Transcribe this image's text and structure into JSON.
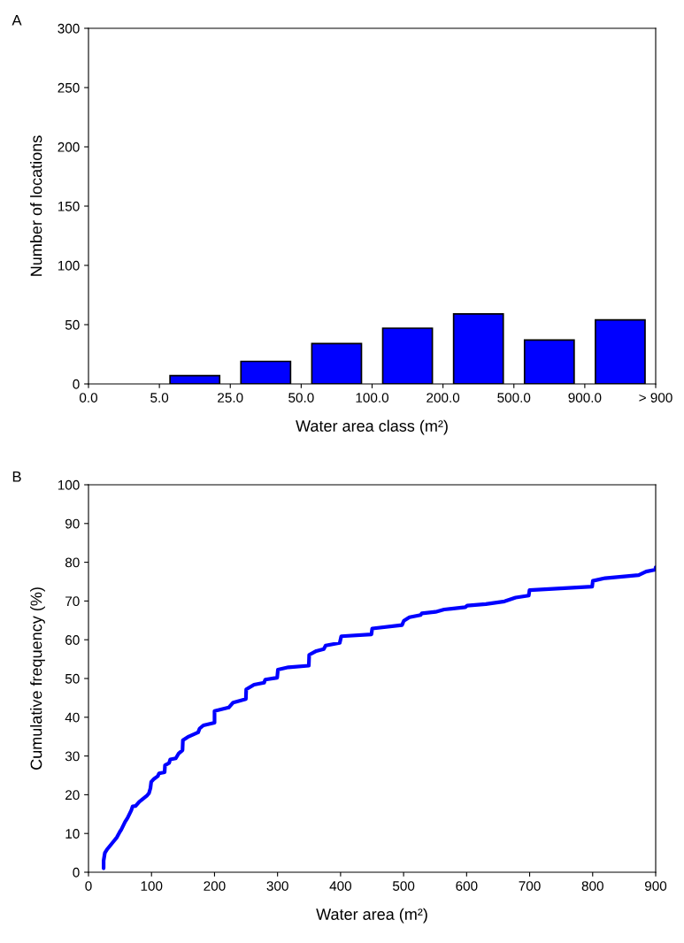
{
  "chart_data": [
    {
      "type": "bar",
      "title": "A",
      "xlabel": "Water area class (m²)",
      "ylabel": "Number of locations",
      "categories": [
        null,
        null,
        null,
        null,
        null,
        null,
        null,
        null
      ],
      "values": [
        0,
        7,
        19,
        34,
        47,
        59,
        37,
        54
      ],
      "color": "#0000ff",
      "annotations": [
        "0.0",
        "5.0",
        "25.0",
        "50.0",
        "100.0",
        "200.0",
        "500.0",
        "900.0",
        "> 900"
      ],
      "ylim": [
        0,
        300
      ],
      "yticks": [
        0,
        50,
        100,
        150,
        200,
        250,
        300
      ],
      "grid": false
    },
    {
      "type": "line",
      "title": "B",
      "xlabel": "Water area (m²)",
      "ylabel": "Cumulative frequency (%)",
      "color": "#0000ff",
      "xlim": [
        0,
        900
      ],
      "xticks": [
        0,
        100,
        200,
        300,
        400,
        500,
        600,
        700,
        800,
        900
      ],
      "ylim": [
        0,
        100
      ],
      "yticks": [
        0,
        10,
        20,
        30,
        40,
        50,
        60,
        70,
        80,
        90,
        100
      ],
      "grid": false,
      "x": [
        24,
        24,
        26,
        30,
        40,
        45,
        50,
        52,
        58,
        62,
        68,
        70,
        74.7,
        80.6,
        92.4,
        96,
        98.3,
        99.5,
        104,
        110,
        111.9,
        120.8,
        121.4,
        128,
        129.7,
        138.5,
        143.3,
        149.2,
        149.8,
        157.5,
        174,
        176.4,
        182.3,
        200,
        200,
        222.5,
        229.6,
        249.7,
        250.3,
        262.7,
        278.7,
        280.5,
        299.4,
        300.6,
        317.2,
        349.6,
        350.2,
        361.5,
        373.3,
        376.3,
        398.7,
        401.1,
        449,
        450.2,
        497.5,
        500.4,
        509.3,
        527,
        528.8,
        550.7,
        564.3,
        598,
        600.9,
        630.5,
        660.1,
        677.9,
        698.6,
        699.8,
        799.2,
        800.3,
        819.8,
        873,
        884.8,
        899.6,
        900
      ],
      "values": [
        1,
        3,
        5,
        6,
        8,
        9,
        10.5,
        11,
        13,
        14,
        16,
        17,
        17.1,
        18.2,
        19.7,
        20.4,
        21.7,
        23.3,
        24.1,
        24.8,
        25.5,
        25.8,
        27.6,
        28.2,
        29.1,
        29.4,
        30.7,
        31.5,
        34.1,
        34.9,
        36.1,
        37.1,
        37.9,
        38.6,
        41.6,
        42.5,
        43.8,
        44.7,
        47.2,
        48.4,
        48.9,
        49.7,
        50.2,
        52.3,
        52.9,
        53.3,
        56.1,
        57.1,
        57.6,
        58.5,
        59.2,
        60.9,
        61.4,
        62.9,
        63.8,
        64.9,
        65.8,
        66.4,
        66.8,
        67.2,
        67.8,
        68.4,
        68.8,
        69.2,
        69.9,
        70.9,
        71.4,
        72.8,
        73.7,
        75.2,
        75.9,
        76.7,
        77.6,
        78.1,
        78.7
      ]
    }
  ]
}
